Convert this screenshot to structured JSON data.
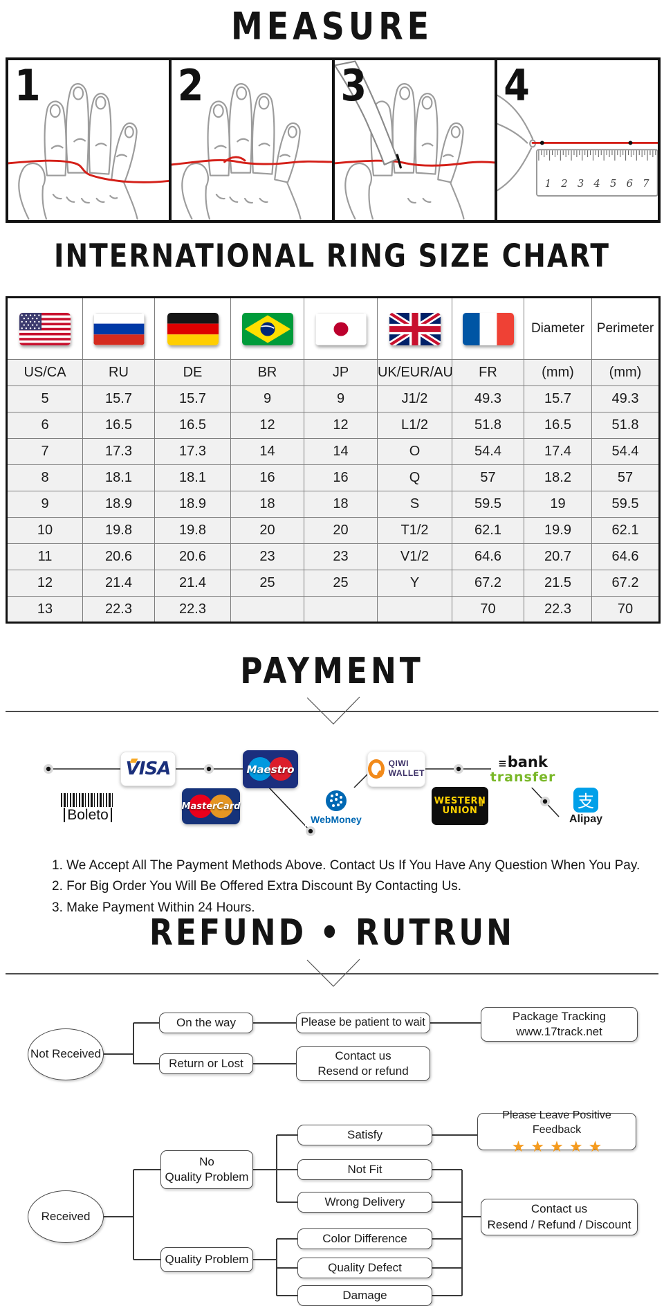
{
  "measure": {
    "title": "MEASURE",
    "steps": [
      "1",
      "2",
      "3",
      "4"
    ],
    "ruler": [
      "1",
      "2",
      "3",
      "4",
      "5",
      "6",
      "7"
    ]
  },
  "size_chart": {
    "title": "INTERNATIONAL RING SIZE CHART",
    "flags": [
      "us-flag",
      "ru-flag",
      "de-flag",
      "br-flag",
      "jp-flag",
      "uk-flag",
      "fr-flag"
    ],
    "extra_headers": [
      "Diameter",
      "Perimeter"
    ],
    "column_labels": [
      "US/CA",
      "RU",
      "DE",
      "BR",
      "JP",
      "UK/EUR/AU",
      "FR",
      "(mm)",
      "(mm)"
    ],
    "rows": [
      [
        "5",
        "15.7",
        "15.7",
        "9",
        "9",
        "J1/2",
        "49.3",
        "15.7",
        "49.3"
      ],
      [
        "6",
        "16.5",
        "16.5",
        "12",
        "12",
        "L1/2",
        "51.8",
        "16.5",
        "51.8"
      ],
      [
        "7",
        "17.3",
        "17.3",
        "14",
        "14",
        "O",
        "54.4",
        "17.4",
        "54.4"
      ],
      [
        "8",
        "18.1",
        "18.1",
        "16",
        "16",
        "Q",
        "57",
        "18.2",
        "57"
      ],
      [
        "9",
        "18.9",
        "18.9",
        "18",
        "18",
        "S",
        "59.5",
        "19",
        "59.5"
      ],
      [
        "10",
        "19.8",
        "19.8",
        "20",
        "20",
        "T1/2",
        "62.1",
        "19.9",
        "62.1"
      ],
      [
        "11",
        "20.6",
        "20.6",
        "23",
        "23",
        "V1/2",
        "64.6",
        "20.7",
        "64.6"
      ],
      [
        "12",
        "21.4",
        "21.4",
        "25",
        "25",
        "Y",
        "67.2",
        "21.5",
        "67.2"
      ],
      [
        "13",
        "22.3",
        "22.3",
        "",
        "",
        "",
        "70",
        "22.3",
        "70"
      ]
    ]
  },
  "payment": {
    "title": "PAYMENT",
    "logos": {
      "visa": "VISA",
      "boleto": "Boleto",
      "mastercard": "MasterCard",
      "maestro": "Maestro",
      "webmoney": "WebMoney",
      "qiwi_line1": "QIWI",
      "qiwi_line2": "WALLET",
      "bank_line1": "bank",
      "bank_line2": "transfer",
      "western_line1": "WESTERN",
      "western_line2": "UNION",
      "alipay_glyph": "支",
      "alipay": "Alipay"
    },
    "notes": [
      "1. We Accept All The Payment Methods Above. Contact Us If You Have Any Question When You Pay.",
      "2. For Big Order You Will Be Offered Extra Discount By Contacting Us.",
      "3. Make Payment Within 24 Hours."
    ]
  },
  "refund": {
    "title": "REFUND • RUTRUN",
    "not_received": {
      "source": "Not Received",
      "on_the_way": "On the way",
      "be_patient": "Please be patient to wait",
      "tracking_line1": "Package Tracking",
      "tracking_line2": "www.17track.net",
      "return_or_lost": "Return or Lost",
      "contact_line1": "Contact us",
      "contact_line2": "Resend or refund"
    },
    "received": {
      "source": "Received",
      "no_problem_line1": "No",
      "no_problem_line2": "Quality Problem",
      "satisfy": "Satisfy",
      "feedback": "Please Leave Positive Feedback",
      "stars": 5,
      "not_fit": "Not Fit",
      "wrong_delivery": "Wrong Delivery",
      "problem": "Quality Problem",
      "color_difference": "Color Difference",
      "quality_defect": "Quality Defect",
      "damage": "Damage",
      "contact_line1": "Contact us",
      "contact_line2": "Resend / Refund / Discount"
    }
  },
  "colors": {
    "string_red": "#d42019",
    "star_orange": "#f59b1e",
    "line_dark": "#3a3a3a",
    "table_border": "#7d7d7d",
    "visa_blue": "#1a2f7b",
    "qiwi_orange": "#f28a1a",
    "bank_green": "#7ab829",
    "wu_yellow": "#ffd200",
    "alipay_blue": "#00a0e9"
  }
}
